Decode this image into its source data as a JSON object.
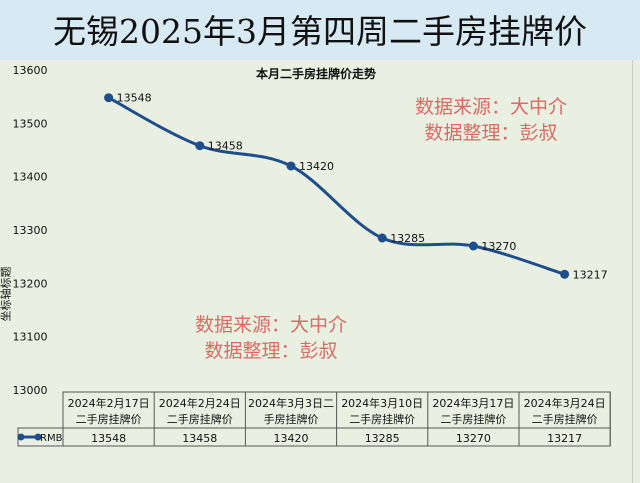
{
  "header": {
    "title": "无锡2025年3月第四周二手房挂牌价"
  },
  "watermark": {
    "line1": "数据来源：大中介",
    "line2": "数据整理：彭叔"
  },
  "colors": {
    "line": "#1f4e8c",
    "watermark": "#d9534f"
  },
  "chart_data": {
    "type": "line",
    "title": "本月二手房挂牌价走势",
    "ylabel": "坐标轴标题",
    "ylim": [
      13000,
      13600
    ],
    "yticks": [
      "13000",
      "13100",
      "13200",
      "13300",
      "13400",
      "13500",
      "13600"
    ],
    "categories": [
      "2024年2月17日二手房挂牌价",
      "2024年2月24日二手房挂牌价",
      "2024年3月3日二手房挂牌价",
      "2024年3月10日二手房挂牌价",
      "2024年3月17日二手房挂牌价",
      "2024年3月24日二手房挂牌价"
    ],
    "category_lines": [
      [
        "2024年2月17日",
        "二手房挂牌价"
      ],
      [
        "2024年2月24日",
        "二手房挂牌价"
      ],
      [
        "2024年3月3日二",
        "手房挂牌价"
      ],
      [
        "2024年3月10日",
        "二手房挂牌价"
      ],
      [
        "2024年3月17日",
        "二手房挂牌价"
      ],
      [
        "2024年3月24日",
        "二手房挂牌价"
      ]
    ],
    "series": [
      {
        "name": "RMB",
        "values": [
          13548,
          13458,
          13420,
          13285,
          13270,
          13217
        ]
      }
    ],
    "legend": "bottom-left (data table)"
  }
}
